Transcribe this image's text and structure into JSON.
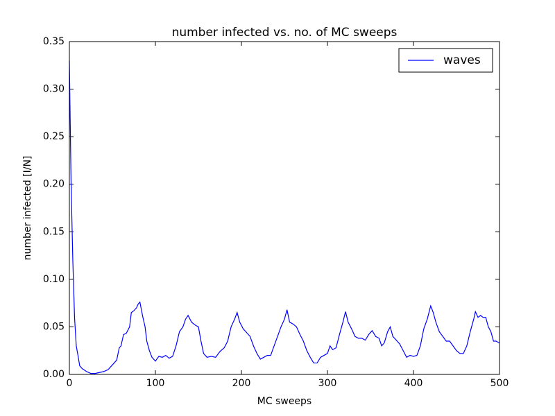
{
  "chart_data": {
    "type": "line",
    "title": "number infected vs. no. of MC sweeps",
    "x_label": "MC sweeps",
    "y_label": "number infected [I/N]",
    "xlim": [
      0,
      500
    ],
    "ylim": [
      0,
      0.35
    ],
    "xticks": [
      0,
      100,
      200,
      300,
      400,
      500
    ],
    "yticks": [
      {
        "value": 0,
        "label": "0.00"
      },
      {
        "value": 0.05,
        "label": "0.05"
      },
      {
        "value": 0.1,
        "label": "0.10"
      },
      {
        "value": 0.15,
        "label": "0.15"
      },
      {
        "value": 0.2,
        "label": "0.20"
      },
      {
        "value": 0.25,
        "label": "0.25"
      },
      {
        "value": 0.3,
        "label": "0.30"
      },
      {
        "value": 0.35,
        "label": "0.35"
      }
    ],
    "legend": "upper right",
    "x": [
      0,
      2,
      4,
      6,
      8,
      10,
      12,
      15,
      20,
      25,
      30,
      35,
      40,
      45,
      50,
      55,
      58,
      60,
      63,
      66,
      70,
      72,
      75,
      78,
      80,
      82,
      85,
      88,
      90,
      93,
      96,
      100,
      104,
      108,
      112,
      116,
      120,
      124,
      128,
      132,
      135,
      138,
      142,
      146,
      150,
      153,
      156,
      160,
      165,
      170,
      175,
      180,
      184,
      188,
      192,
      195,
      198,
      202,
      206,
      210,
      214,
      218,
      222,
      226,
      230,
      234,
      238,
      242,
      246,
      250,
      253,
      256,
      260,
      264,
      268,
      272,
      276,
      280,
      284,
      288,
      292,
      296,
      300,
      303,
      306,
      310,
      314,
      318,
      321,
      324,
      328,
      332,
      336,
      340,
      344,
      348,
      352,
      356,
      360,
      363,
      366,
      370,
      373,
      376,
      380,
      384,
      388,
      392,
      396,
      400,
      404,
      408,
      412,
      416,
      420,
      423,
      426,
      430,
      434,
      438,
      442,
      446,
      450,
      454,
      458,
      462,
      466,
      470,
      472,
      475,
      478,
      481,
      484,
      487,
      490,
      493,
      496,
      500
    ],
    "series": [
      {
        "name": "waves",
        "color": "#0000ff",
        "values": [
          0.33,
          0.2,
          0.12,
          0.06,
          0.03,
          0.02,
          0.009,
          0.006,
          0.003,
          0.001,
          0.001,
          0.002,
          0.003,
          0.005,
          0.01,
          0.015,
          0.028,
          0.03,
          0.042,
          0.043,
          0.05,
          0.065,
          0.067,
          0.07,
          0.074,
          0.076,
          0.062,
          0.05,
          0.035,
          0.025,
          0.018,
          0.014,
          0.019,
          0.018,
          0.02,
          0.017,
          0.019,
          0.03,
          0.045,
          0.05,
          0.058,
          0.062,
          0.055,
          0.052,
          0.05,
          0.035,
          0.022,
          0.018,
          0.019,
          0.018,
          0.024,
          0.028,
          0.035,
          0.05,
          0.058,
          0.065,
          0.055,
          0.048,
          0.044,
          0.04,
          0.03,
          0.022,
          0.016,
          0.018,
          0.02,
          0.02,
          0.03,
          0.04,
          0.05,
          0.058,
          0.068,
          0.055,
          0.053,
          0.05,
          0.042,
          0.035,
          0.025,
          0.018,
          0.012,
          0.012,
          0.018,
          0.02,
          0.022,
          0.03,
          0.026,
          0.028,
          0.042,
          0.055,
          0.066,
          0.055,
          0.048,
          0.04,
          0.038,
          0.038,
          0.036,
          0.042,
          0.046,
          0.04,
          0.038,
          0.03,
          0.033,
          0.045,
          0.05,
          0.04,
          0.036,
          0.032,
          0.025,
          0.018,
          0.02,
          0.019,
          0.02,
          0.03,
          0.048,
          0.058,
          0.072,
          0.065,
          0.055,
          0.045,
          0.04,
          0.035,
          0.035,
          0.03,
          0.025,
          0.022,
          0.022,
          0.03,
          0.045,
          0.058,
          0.066,
          0.06,
          0.062,
          0.06,
          0.06,
          0.05,
          0.045,
          0.035,
          0.035,
          0.033
        ]
      }
    ]
  }
}
